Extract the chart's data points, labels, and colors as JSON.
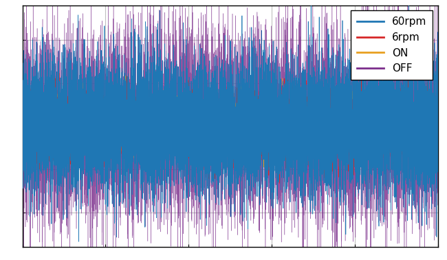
{
  "n_points": 10000,
  "blue_color": "#1f77b4",
  "orange_red_color": "#d62728",
  "yellow_color": "#e8a020",
  "purple_color": "#7B2D8B",
  "legend_labels": [
    "60rpm",
    "6rpm",
    "ON",
    "OFF"
  ],
  "background_color": "#ffffff",
  "grid_color": "#c0c0c0",
  "ylim": [
    -1.4,
    1.4
  ],
  "xlim": [
    0,
    10000
  ],
  "figsize": [
    6.5,
    3.78
  ],
  "dpi": 100,
  "blue_std": 0.38,
  "orange_std": 0.18,
  "yellow_std": 0.15,
  "purple_std": 0.55
}
